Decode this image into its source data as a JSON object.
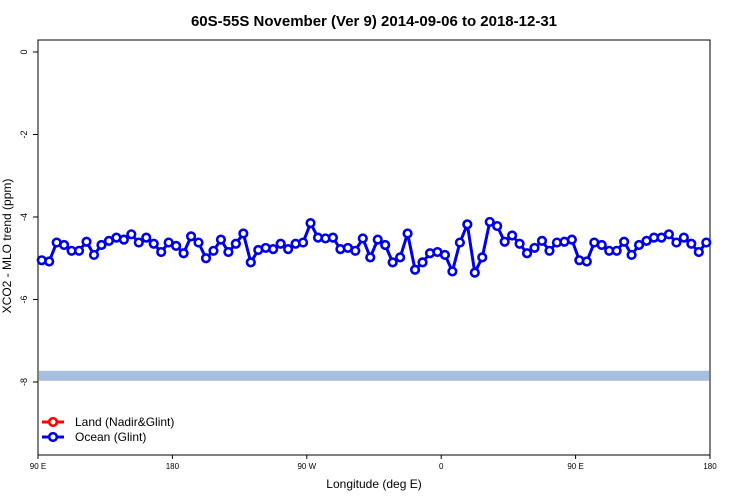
{
  "chart_data": {
    "type": "line",
    "title": "60S-55S November (Ver 9)   2014-09-06 to 2018-12-31",
    "x_label": "Longitude (deg E)",
    "y_label": "XCO2 - MLO trend (ppm)",
    "xlim": [
      90,
      540
    ],
    "xticks": [
      {
        "value": 90,
        "label": "90 E"
      },
      {
        "value": 180,
        "label": "180"
      },
      {
        "value": 270,
        "label": "90 W"
      },
      {
        "value": 360,
        "label": "0"
      },
      {
        "value": 450,
        "label": "90 E"
      },
      {
        "value": 540,
        "label": "180"
      }
    ],
    "ylim": [
      -9.77,
      0.29
    ],
    "yticks": [
      0,
      -2,
      -4,
      -6,
      -8
    ],
    "legend": "bottom-left",
    "reference_band": {
      "value": -7.85,
      "color": "#a8bedf"
    },
    "series": [
      {
        "name": "Land (Nadir&Glint)",
        "color": "#ff0000",
        "x": [],
        "values": []
      },
      {
        "name": "Ocean (Glint)",
        "color": "#0000e6",
        "x": [
          92.5,
          97.5,
          102.5,
          107.5,
          112.5,
          117.5,
          122.5,
          127.5,
          132.5,
          137.5,
          142.5,
          147.5,
          152.5,
          157.5,
          162.5,
          167.5,
          172.5,
          177.5,
          182.5,
          187.5,
          192.5,
          197.5,
          202.5,
          207.5,
          212.5,
          217.5,
          222.5,
          227.5,
          232.5,
          237.5,
          242.5,
          247.5,
          252.5,
          257.5,
          262.5,
          267.5,
          272.5,
          277.5,
          282.5,
          287.5,
          292.5,
          297.5,
          302.5,
          307.5,
          312.5,
          317.5,
          322.5,
          327.5,
          332.5,
          337.5,
          342.5,
          347.5,
          352.5,
          357.5,
          362.5,
          367.5,
          372.5,
          377.5,
          382.5,
          387.5,
          392.5,
          397.5,
          402.5,
          407.5,
          412.5,
          417.5,
          422.5,
          427.5,
          432.5,
          437.5,
          442.5,
          447.5,
          452.5,
          457.5,
          462.5,
          467.5,
          472.5,
          477.5,
          482.5,
          487.5,
          492.5,
          497.5,
          502.5,
          507.5,
          512.5,
          517.5,
          522.5,
          527.5,
          532.5,
          537.5
        ],
        "values": [
          -5.05,
          -5.08,
          -4.62,
          -4.68,
          -4.82,
          -4.82,
          -4.6,
          -4.92,
          -4.68,
          -4.58,
          -4.5,
          -4.55,
          -4.42,
          -4.62,
          -4.5,
          -4.65,
          -4.85,
          -4.62,
          -4.7,
          -4.88,
          -4.47,
          -4.62,
          -5.0,
          -4.82,
          -4.55,
          -4.85,
          -4.65,
          -4.4,
          -5.1,
          -4.8,
          -4.75,
          -4.78,
          -4.65,
          -4.78,
          -4.65,
          -4.62,
          -4.15,
          -4.5,
          -4.52,
          -4.5,
          -4.78,
          -4.75,
          -4.82,
          -4.52,
          -4.98,
          -4.55,
          -4.68,
          -5.1,
          -4.98,
          -4.4,
          -5.28,
          -5.1,
          -4.88,
          -4.85,
          -4.92,
          -5.32,
          -4.62,
          -4.18,
          -5.35,
          -4.98,
          -4.12,
          -4.22,
          -4.6,
          -4.45,
          -4.65,
          -4.88,
          -4.75,
          -4.58,
          -4.82,
          -4.62,
          -4.6,
          -4.55,
          -5.05,
          -5.08,
          -4.62,
          -4.68,
          -4.82,
          -4.82,
          -4.6,
          -4.92,
          -4.68,
          -4.58,
          -4.5,
          -4.5,
          -4.42,
          -4.62,
          -4.5,
          -4.65,
          -4.85,
          -4.62
        ]
      }
    ]
  }
}
